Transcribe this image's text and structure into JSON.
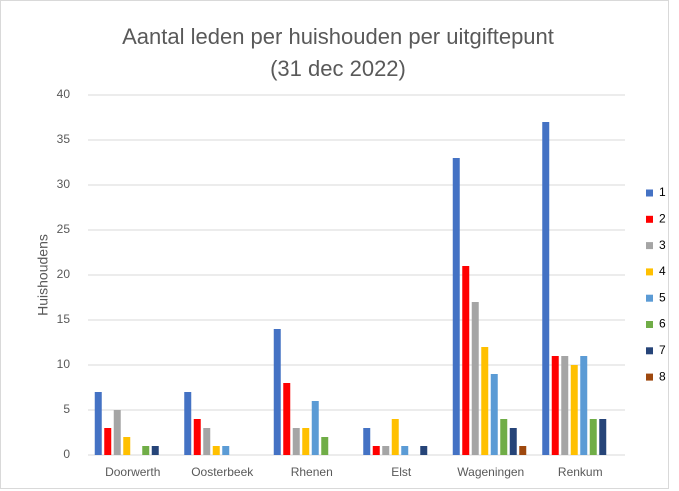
{
  "chart_data": {
    "type": "bar",
    "title": "Aantal leden per huishouden per uitgiftepunt",
    "subtitle": "(31 dec 2022)",
    "y_label": "Huishoudens",
    "categories": [
      "Doorwerth",
      "Oosterbeek",
      "Rhenen",
      "Elst",
      "Wageningen",
      "Renkum"
    ],
    "series": [
      {
        "name": "1",
        "color": "#4472c4",
        "values": [
          7,
          7,
          14,
          3,
          33,
          37
        ]
      },
      {
        "name": "2",
        "color": "#ff0000",
        "values": [
          3,
          4,
          8,
          1,
          21,
          11
        ]
      },
      {
        "name": "3",
        "color": "#a5a5a5",
        "values": [
          5,
          3,
          3,
          1,
          17,
          11
        ]
      },
      {
        "name": "4",
        "color": "#ffc000",
        "values": [
          2,
          1,
          3,
          4,
          12,
          10
        ]
      },
      {
        "name": "5",
        "color": "#5b9bd5",
        "values": [
          0,
          1,
          6,
          1,
          9,
          11
        ]
      },
      {
        "name": "6",
        "color": "#70ad47",
        "values": [
          1,
          0,
          2,
          0,
          4,
          4
        ]
      },
      {
        "name": "7",
        "color": "#264478",
        "values": [
          1,
          0,
          0,
          1,
          3,
          4
        ]
      },
      {
        "name": "8",
        "color": "#9e480e",
        "values": [
          0,
          0,
          0,
          0,
          1,
          0
        ]
      }
    ],
    "ylim": [
      0,
      40
    ],
    "yticks": [
      0,
      5,
      10,
      15,
      20,
      25,
      30,
      35,
      40
    ],
    "grid": true,
    "legend": "right"
  }
}
